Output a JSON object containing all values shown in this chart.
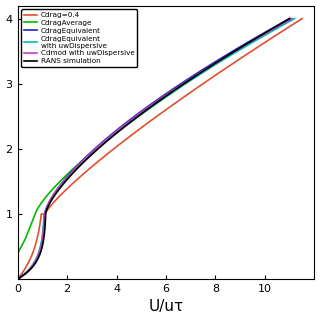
{
  "xlabel": "U/uτ",
  "xlim": [
    0,
    12
  ],
  "ylim": [
    0,
    4.2
  ],
  "yticks": [
    0,
    1,
    2,
    3,
    4
  ],
  "xticks": [
    0,
    2,
    4,
    6,
    8,
    10
  ],
  "legend_entries": [
    "RANS simulation",
    "Cdrag=0.4",
    "CdragAverage",
    "CdragEquivalent",
    "CdragEquivalent\nwith uwDispersive",
    "Cdmod with uwDispersive"
  ],
  "line_colors": [
    "#000000",
    "#e05030",
    "#00bb00",
    "#2222bb",
    "#00bbbb",
    "#bb44bb"
  ],
  "background_color": "#ffffff",
  "lw": 1.2
}
